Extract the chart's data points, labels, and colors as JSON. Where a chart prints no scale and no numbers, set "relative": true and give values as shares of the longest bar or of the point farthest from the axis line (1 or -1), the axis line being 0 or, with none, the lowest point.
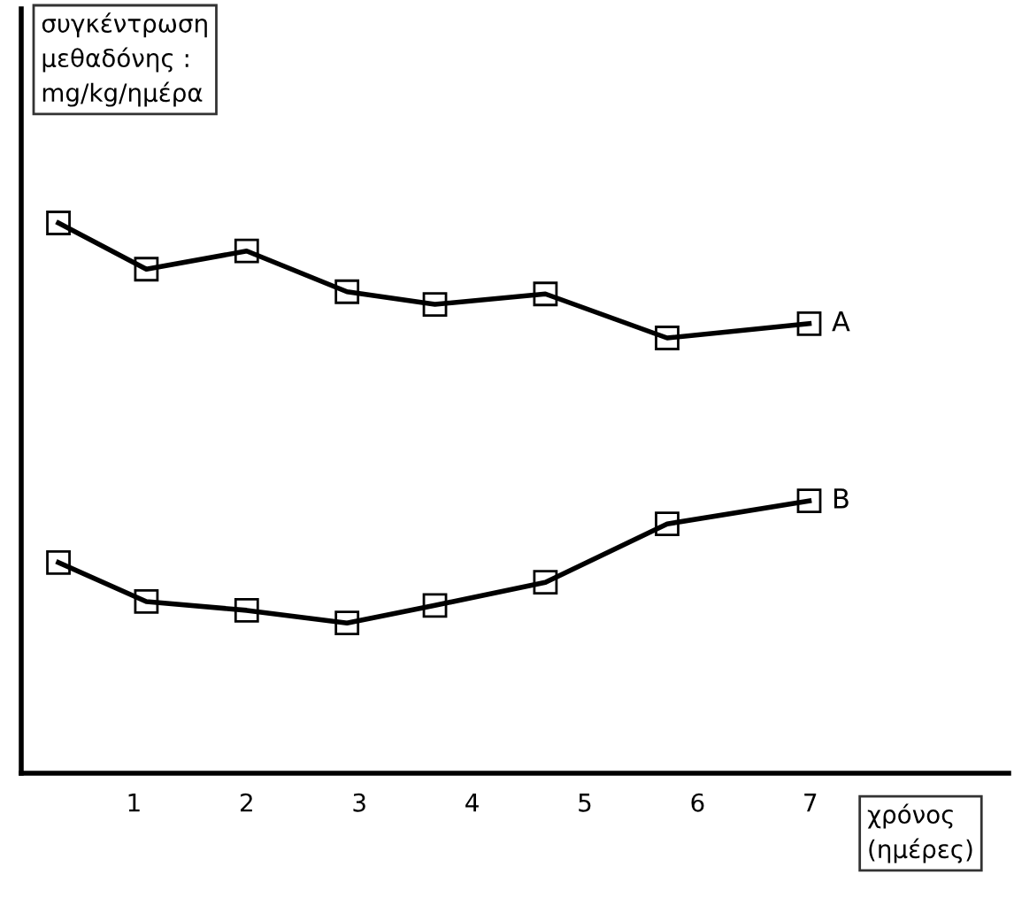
{
  "chart_data": {
    "type": "line",
    "relative": true,
    "ylabel": "συγκέντρωση\nμεθαδόνης :\nmg/kg/ημέρα",
    "xlabel": "χρόνος\n(ημέρες)",
    "xlim": [
      0,
      8.76
    ],
    "xticks": [
      1,
      2,
      3,
      4,
      5,
      6,
      7
    ],
    "tick_labels": "x",
    "grid": false,
    "legend": false,
    "marker": "square",
    "line_style": "solid",
    "series": [
      {
        "name": "A",
        "color": "#000000",
        "x": [
          0.33,
          1.11,
          2.0,
          2.89,
          3.67,
          4.65,
          5.73,
          6.99
        ],
        "values": [
          1.0,
          0.916,
          0.949,
          0.875,
          0.852,
          0.871,
          0.791,
          0.817
        ]
      },
      {
        "name": "B",
        "color": "#000000",
        "x": [
          0.33,
          1.11,
          2.0,
          2.89,
          3.67,
          4.65,
          5.73,
          6.99
        ],
        "values": [
          0.383,
          0.312,
          0.296,
          0.273,
          0.305,
          0.347,
          0.453,
          0.495
        ]
      }
    ]
  }
}
